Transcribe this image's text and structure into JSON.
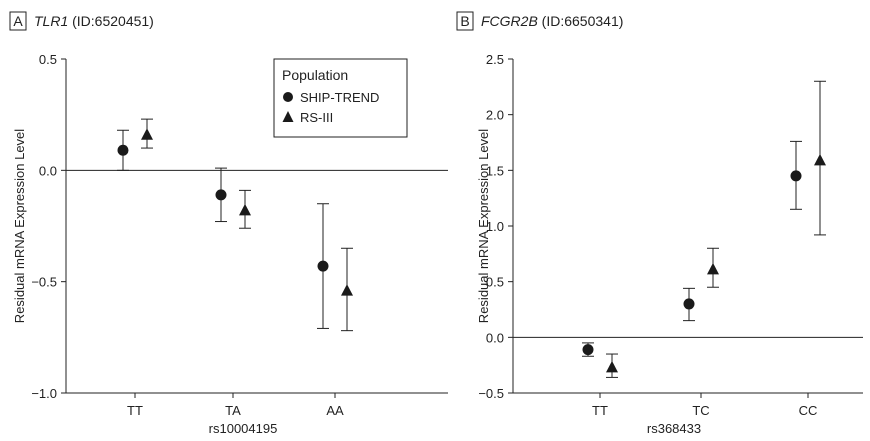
{
  "legend": {
    "title": "Population",
    "series": [
      {
        "name": "SHIP-TREND",
        "marker": "circle"
      },
      {
        "name": "RS-III",
        "marker": "triangle"
      }
    ]
  },
  "colors": {
    "marker": "#1a1a1a",
    "axis": "#222222"
  },
  "chart_data": [
    {
      "type": "scatter",
      "panel_label": "A",
      "title_gene": "TLR1",
      "title_id": "(ID:6520451)",
      "xlabel": "rs10004195",
      "ylabel": "Residual mRNA Expression Level",
      "categories": [
        "TT",
        "TA",
        "AA"
      ],
      "ylim": [
        -1.0,
        0.5
      ],
      "yticks": [
        "0.5",
        "0.0",
        "−0.5",
        "−1.0"
      ],
      "ytick_values": [
        0.5,
        0.0,
        -0.5,
        -1.0
      ],
      "zero_line": true,
      "series": [
        {
          "name": "SHIP-TREND",
          "marker": "circle",
          "values": [
            0.09,
            -0.11,
            -0.43
          ],
          "err_low": [
            0.0,
            -0.23,
            -0.71
          ],
          "err_high": [
            0.18,
            0.01,
            -0.15
          ]
        },
        {
          "name": "RS-III",
          "marker": "triangle",
          "values": [
            0.16,
            -0.18,
            -0.54
          ],
          "err_low": [
            0.1,
            -0.26,
            -0.72
          ],
          "err_high": [
            0.23,
            -0.09,
            -0.35
          ]
        }
      ]
    },
    {
      "type": "scatter",
      "panel_label": "B",
      "title_gene": "FCGR2B",
      "title_id": "(ID:6650341)",
      "xlabel": "rs368433",
      "ylabel": "Residual mRNA Expression Level",
      "categories": [
        "TT",
        "TC",
        "CC"
      ],
      "ylim": [
        -0.5,
        2.5
      ],
      "yticks": [
        "2.5",
        "2.0",
        "1.5",
        "1.0",
        "0.5",
        "0.0",
        "−0.5"
      ],
      "ytick_values": [
        2.5,
        2.0,
        1.5,
        1.0,
        0.5,
        0.0,
        -0.5
      ],
      "zero_line": true,
      "series": [
        {
          "name": "SHIP-TREND",
          "marker": "circle",
          "values": [
            -0.11,
            0.3,
            1.45
          ],
          "err_low": [
            -0.17,
            0.15,
            1.15
          ],
          "err_high": [
            -0.05,
            0.44,
            1.76
          ]
        },
        {
          "name": "RS-III",
          "marker": "triangle",
          "values": [
            -0.27,
            0.61,
            1.59
          ],
          "err_low": [
            -0.36,
            0.45,
            0.92
          ],
          "err_high": [
            -0.15,
            0.8,
            2.3
          ]
        }
      ]
    }
  ]
}
